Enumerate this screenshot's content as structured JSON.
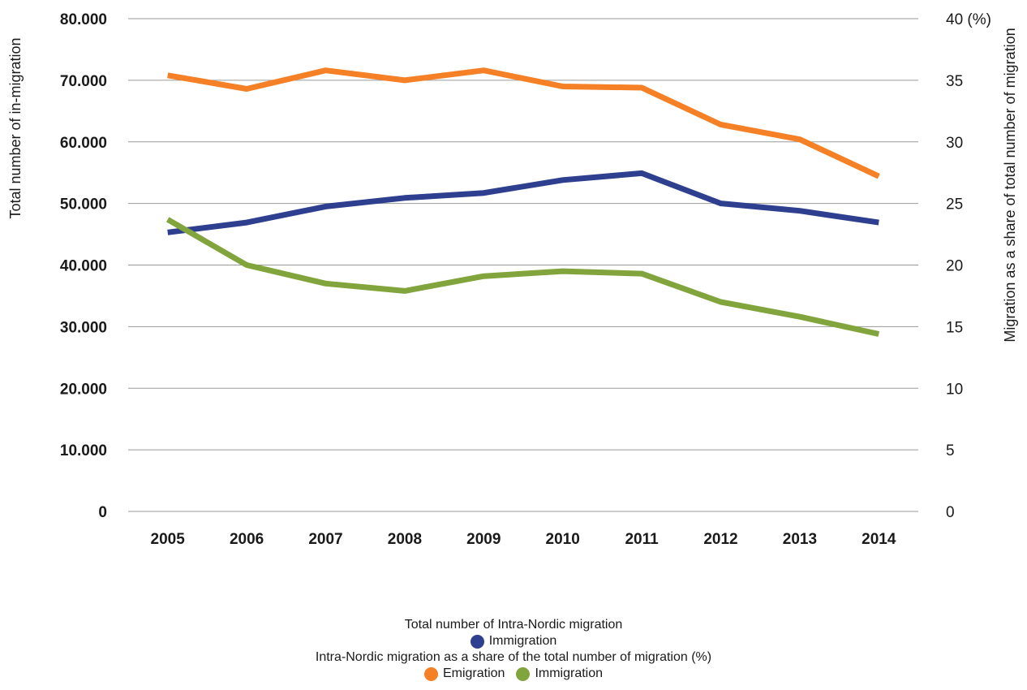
{
  "chart_data": {
    "type": "line",
    "x": [
      "2005",
      "2006",
      "2007",
      "2008",
      "2009",
      "2010",
      "2011",
      "2012",
      "2013",
      "2014"
    ],
    "left_axis": {
      "label": "Total number of in-migration",
      "ylim": [
        0,
        80000
      ],
      "ticks": [
        "0",
        "10.000",
        "20.000",
        "30.000",
        "40.000",
        "50.000",
        "60.000",
        "70.000",
        "80.000"
      ]
    },
    "right_axis": {
      "label": "Migration as a share of  total number of migration",
      "ylim": [
        0,
        40
      ],
      "ticks": [
        "0",
        "5",
        "10",
        "15",
        "20",
        "25",
        "30",
        "35",
        "40 (%)"
      ]
    },
    "series": [
      {
        "group": "count",
        "axis": "left",
        "name": "Immigration",
        "color": "#2e3f8f",
        "values": [
          45300,
          46900,
          49500,
          50900,
          51700,
          53800,
          54900,
          50000,
          48800,
          46900
        ]
      },
      {
        "group": "share",
        "axis": "right",
        "name": "Emigration",
        "color": "#f58025",
        "values": [
          35.4,
          34.3,
          35.8,
          35.0,
          35.8,
          34.5,
          34.4,
          31.4,
          30.2,
          27.2
        ]
      },
      {
        "group": "share",
        "axis": "right",
        "name": "Immigration",
        "color": "#82a43c",
        "values": [
          23.7,
          20.0,
          18.5,
          17.9,
          19.1,
          19.5,
          19.3,
          17.0,
          15.8,
          14.4
        ]
      }
    ],
    "grid": true,
    "legend": {
      "position": "bottom",
      "count_title": "Total number of Intra-Nordic migration",
      "share_title": "Intra-Nordic migration as a share of the total number of migration (%)"
    }
  }
}
